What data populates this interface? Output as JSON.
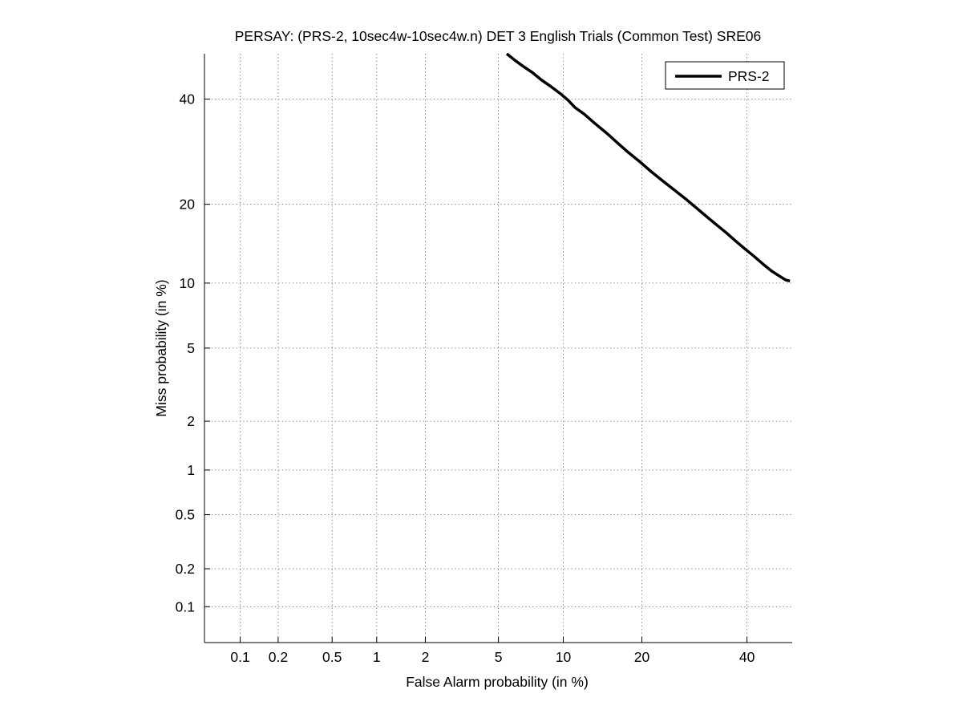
{
  "chart_data": {
    "type": "line",
    "title": "PERSAY: (PRS-2, 10sec4w-10sec4w.n) DET 3 English Trials (Common Test) SRE06",
    "xlabel": "False Alarm probability (in %)",
    "ylabel": "Miss probability (in %)",
    "x_scale": "probit",
    "y_scale": "probit",
    "xlim": [
      0.05,
      50
    ],
    "ylim": [
      0.05,
      50
    ],
    "x_ticks": [
      0.1,
      0.2,
      0.5,
      1,
      2,
      5,
      10,
      20,
      40
    ],
    "x_tick_labels": [
      "0.1",
      "0.2",
      "0.5",
      "1",
      "2",
      "5",
      "10",
      "20",
      "40"
    ],
    "y_ticks": [
      0.1,
      0.2,
      0.5,
      1,
      2,
      5,
      10,
      20,
      40
    ],
    "y_tick_labels": [
      "0.1",
      "0.2",
      "0.5",
      "1",
      "2",
      "5",
      "10",
      "20",
      "40"
    ],
    "grid": true,
    "legend_position": "top-right",
    "series": [
      {
        "name": "PRS-2",
        "color": "#000000",
        "x": [
          5.5,
          6.0,
          6.6,
          7.3,
          8.0,
          8.8,
          9.7,
          10.5,
          11.2,
          12.2,
          13.5,
          15.0,
          16.5,
          18.0,
          19.8,
          21.5,
          23.5,
          25.5,
          27.5,
          29.5,
          31.5,
          33.5,
          35.5,
          37.5,
          39.5,
          41.5,
          43.5,
          45.5,
          47.5,
          48.6,
          49.5
        ],
        "y": [
          50.0,
          48.6,
          47.2,
          45.8,
          44.2,
          42.8,
          41.2,
          39.7,
          38.2,
          36.8,
          34.8,
          32.8,
          30.8,
          29.0,
          27.2,
          25.5,
          23.8,
          22.3,
          20.9,
          19.5,
          18.2,
          17.0,
          15.9,
          14.8,
          13.8,
          12.9,
          12.0,
          11.2,
          10.6,
          10.3,
          10.2
        ]
      }
    ]
  }
}
